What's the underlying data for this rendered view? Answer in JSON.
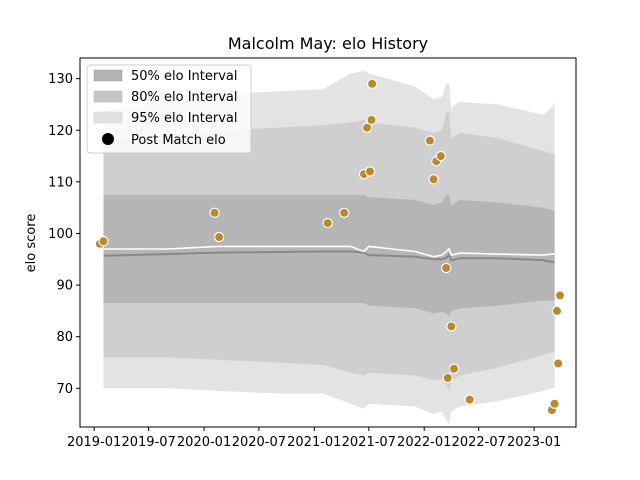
{
  "chart_data": {
    "type": "line",
    "title": "Malcolm May: elo History",
    "xlabel": "",
    "ylabel": "elo score",
    "x_ticks": [
      "2019-01",
      "2019-07",
      "2020-01",
      "2020-07",
      "2021-01",
      "2021-07",
      "2022-01",
      "2022-07",
      "2023-01"
    ],
    "y_ticks": [
      70,
      80,
      90,
      100,
      110,
      120,
      130
    ],
    "ylim": [
      62.5,
      134
    ],
    "xlim": [
      "2018-11-15",
      "2023-05-20"
    ],
    "legend": {
      "placement": "top-left",
      "entries": [
        {
          "label": "50% elo Interval",
          "kind": "band",
          "color": "#b3b3b3"
        },
        {
          "label": "80% elo Interval",
          "kind": "band",
          "color": "#c6c6c6"
        },
        {
          "label": "95% elo Interval",
          "kind": "band",
          "color": "#e1e1e1"
        },
        {
          "label": "Post Match elo",
          "kind": "marker",
          "color": "#000000"
        }
      ]
    },
    "colors": {
      "band50": "#b5b5b5",
      "band80": "#cfcfcf",
      "band95": "#e3e3e3",
      "mean_line": "#ffffff",
      "median_line": "#888888",
      "points": "#b8892e"
    },
    "timeline": [
      "2019-02-01",
      "2019-09-01",
      "2020-02-15",
      "2020-09-01",
      "2021-02-01",
      "2021-05-01",
      "2021-06-15",
      "2021-07-01",
      "2021-12-01",
      "2022-02-01",
      "2022-03-01",
      "2022-03-15",
      "2022-03-25",
      "2022-04-01",
      "2022-04-15",
      "2022-05-01",
      "2022-09-01",
      "2023-02-01",
      "2023-03-01",
      "2023-03-10"
    ],
    "series": [
      {
        "name": "95% elo Interval upper",
        "values": [
          124,
          125.5,
          127,
          127.5,
          128,
          131,
          131.5,
          131,
          128.5,
          126,
          126.5,
          129,
          129,
          124,
          125,
          125.5,
          125,
          123,
          124.5,
          125.5
        ]
      },
      {
        "name": "80% elo Interval upper",
        "values": [
          118,
          119,
          120,
          120.5,
          121,
          121.5,
          122,
          121.5,
          120.5,
          119.5,
          120,
          123.5,
          123.5,
          118.5,
          119,
          119.5,
          118.5,
          116,
          115.5,
          115.5
        ]
      },
      {
        "name": "50% elo Interval upper",
        "values": [
          107.5,
          107.5,
          107.5,
          107.5,
          107.5,
          107.5,
          107.5,
          107,
          106.5,
          105.5,
          106,
          107.5,
          107.5,
          105.5,
          106,
          106.5,
          106,
          105,
          104.5,
          104.5
        ]
      },
      {
        "name": "mean",
        "values": [
          97,
          97,
          97.5,
          97.5,
          97.5,
          97.5,
          96.5,
          97.5,
          96.5,
          95.5,
          95.8,
          96.5,
          97,
          95.8,
          96,
          96.2,
          96,
          95.8,
          96,
          96
        ]
      },
      {
        "name": "median",
        "values": [
          95.7,
          96,
          96.3,
          96.4,
          96.5,
          96.5,
          96.3,
          95.8,
          95.5,
          95,
          95,
          95.3,
          95.8,
          94.8,
          95,
          95.2,
          95.2,
          94.8,
          94.5,
          94.5
        ]
      },
      {
        "name": "50% elo Interval lower",
        "values": [
          86.5,
          86.5,
          86.5,
          86.5,
          86.5,
          86.5,
          86.5,
          86,
          85.5,
          84.5,
          84.8,
          84.5,
          84,
          85,
          85.2,
          85.5,
          86,
          87,
          87,
          87
        ]
      },
      {
        "name": "80% elo Interval lower",
        "values": [
          76,
          76,
          75.5,
          75,
          74.5,
          73,
          72.5,
          73,
          72.5,
          71.5,
          71.8,
          70.5,
          69.5,
          71.5,
          72,
          72.5,
          74,
          76.5,
          77,
          77
        ]
      },
      {
        "name": "95% elo Interval lower",
        "values": [
          70,
          70,
          69.5,
          69,
          69,
          67,
          66,
          67,
          66.5,
          65,
          65.5,
          63.8,
          63,
          65.5,
          66,
          66.5,
          67.5,
          69.5,
          70,
          70
        ]
      }
    ],
    "points": [
      {
        "x": "2019-01-20",
        "y": 98
      },
      {
        "x": "2019-02-01",
        "y": 98.5
      },
      {
        "x": "2020-02-05",
        "y": 104
      },
      {
        "x": "2020-02-20",
        "y": 99.3
      },
      {
        "x": "2021-02-15",
        "y": 102
      },
      {
        "x": "2021-04-10",
        "y": 104
      },
      {
        "x": "2021-06-15",
        "y": 111.5
      },
      {
        "x": "2021-06-25",
        "y": 120.5
      },
      {
        "x": "2021-07-05",
        "y": 112
      },
      {
        "x": "2021-07-10",
        "y": 122
      },
      {
        "x": "2021-07-12",
        "y": 129
      },
      {
        "x": "2022-01-20",
        "y": 118
      },
      {
        "x": "2022-02-01",
        "y": 110.5
      },
      {
        "x": "2022-02-10",
        "y": 114
      },
      {
        "x": "2022-02-25",
        "y": 115
      },
      {
        "x": "2022-03-15",
        "y": 93.3
      },
      {
        "x": "2022-03-20",
        "y": 72
      },
      {
        "x": "2022-04-01",
        "y": 82
      },
      {
        "x": "2022-04-10",
        "y": 73.8
      },
      {
        "x": "2022-06-01",
        "y": 67.8
      },
      {
        "x": "2023-03-01",
        "y": 65.8
      },
      {
        "x": "2023-03-10",
        "y": 67
      },
      {
        "x": "2023-03-18",
        "y": 85
      },
      {
        "x": "2023-03-22",
        "y": 74.8
      },
      {
        "x": "2023-03-28",
        "y": 88
      }
    ]
  }
}
